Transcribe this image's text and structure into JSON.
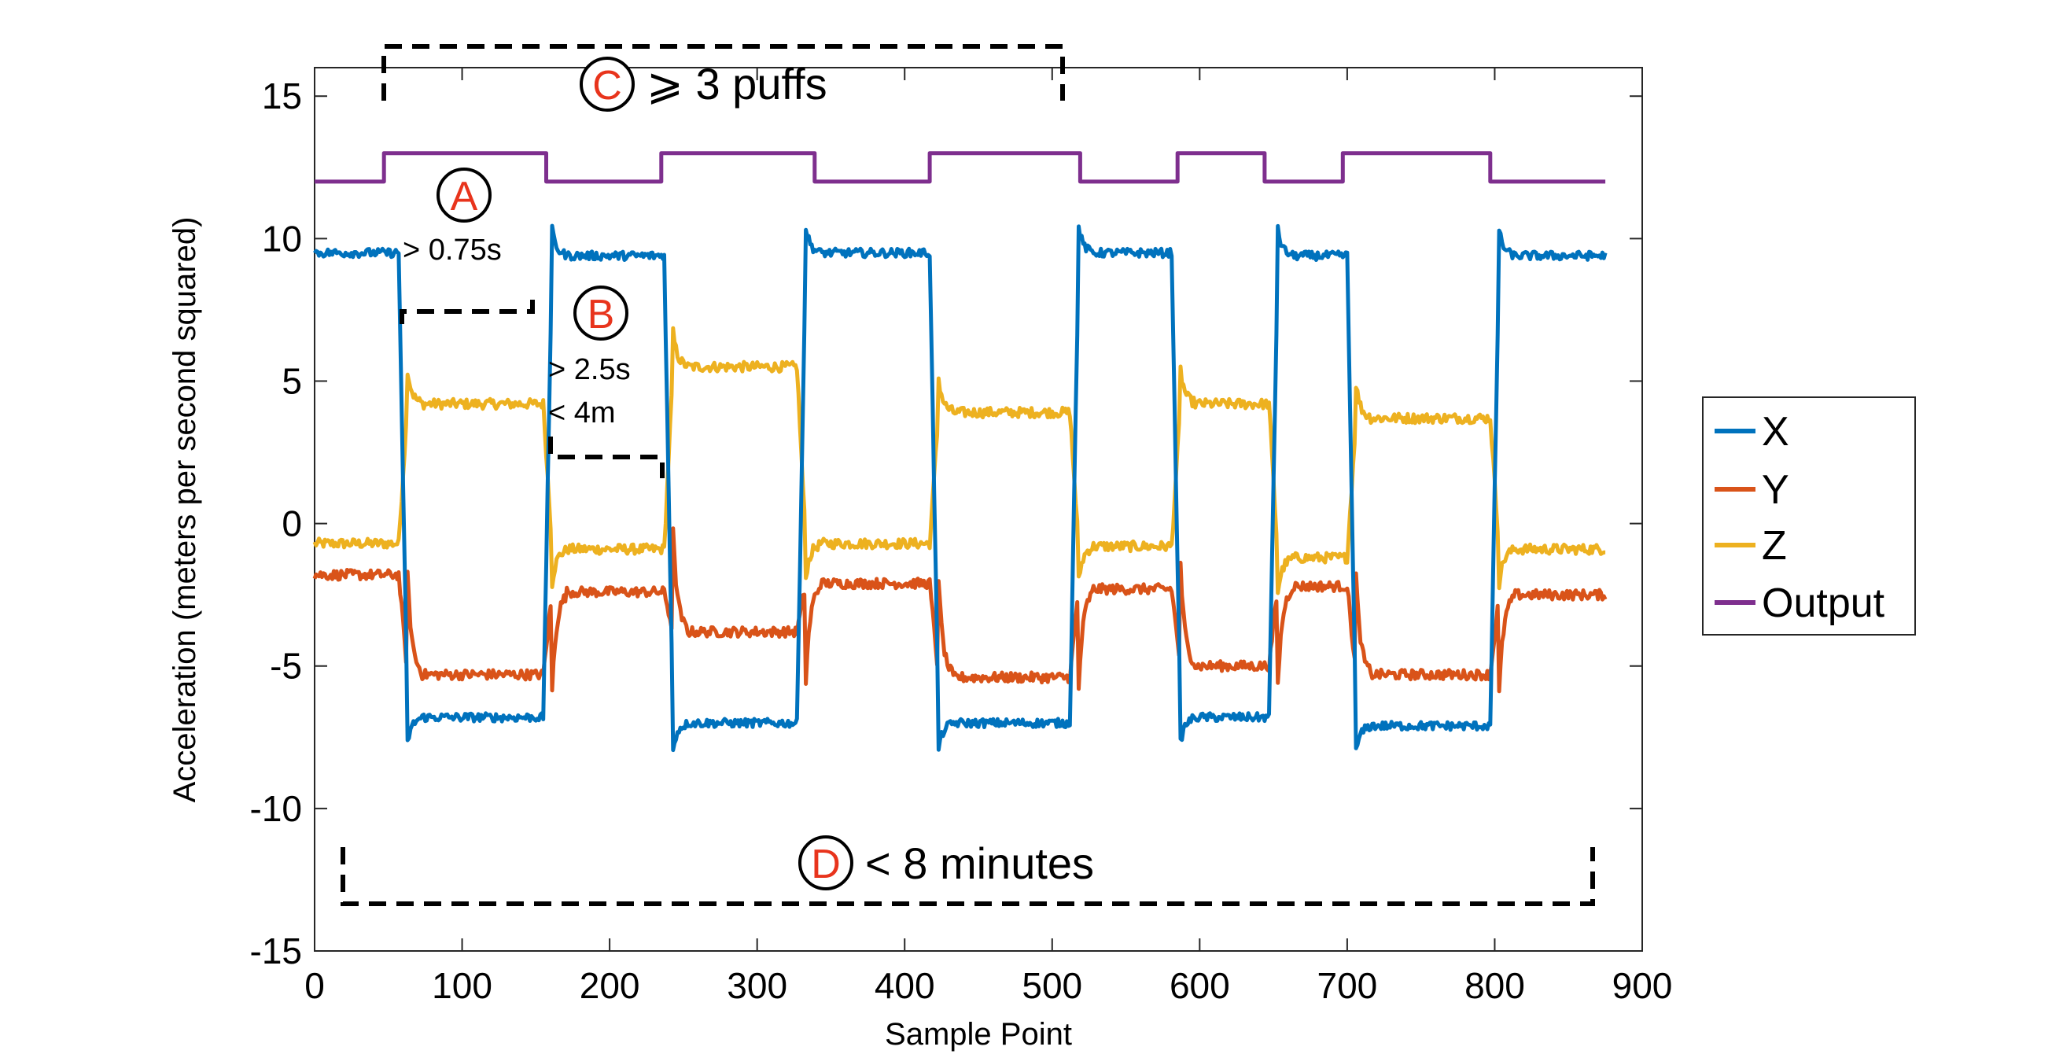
{
  "chart_data": {
    "type": "line",
    "xlabel": "Sample Point",
    "ylabel": "Acceleration (meters per second squared)",
    "xlim": [
      0,
      900
    ],
    "ylim": [
      -15,
      16
    ],
    "xticks": [
      "0",
      "100",
      "200",
      "300",
      "400",
      "500",
      "600",
      "700",
      "800",
      "900"
    ],
    "yticks": [
      "15",
      "10",
      "5",
      "0",
      "-5",
      "-10",
      "-15"
    ],
    "grid": false,
    "legend_position": "right",
    "colors": {
      "X": "#0072bd",
      "Y": "#d95319",
      "Z": "#edb120",
      "Output": "#7e2f8e",
      "annotation": "#e8341c"
    },
    "segments": {
      "x_range": [
        0,
        875
      ],
      "boundaries": [
        0,
        57,
        155,
        237,
        327,
        417,
        512,
        581,
        647,
        700,
        797,
        875
      ],
      "X": [
        9.5,
        -6.8,
        9.4,
        -7.0,
        9.5,
        -7.0,
        9.5,
        -6.8,
        9.4,
        -7.1,
        9.4
      ],
      "Y": [
        -1.8,
        -5.3,
        -2.4,
        -3.8,
        -2.1,
        -5.4,
        -2.3,
        -5.0,
        -2.2,
        -5.3,
        -2.5
      ],
      "Z": [
        -0.7,
        4.2,
        -0.9,
        5.5,
        -0.7,
        3.9,
        -0.8,
        4.2,
        -1.2,
        3.7,
        -0.9
      ]
    },
    "series": [
      {
        "name": "Output",
        "x": [
          0,
          47,
          47,
          157,
          157,
          235,
          235,
          339,
          339,
          417,
          417,
          519,
          519,
          585,
          585,
          644,
          644,
          697,
          697,
          797,
          797,
          875
        ],
        "values": [
          12,
          12,
          13,
          13,
          12,
          12,
          13,
          13,
          12,
          12,
          13,
          13,
          12,
          12,
          13,
          13,
          12,
          12,
          13,
          13,
          12,
          12
        ]
      }
    ],
    "legend": [
      "X",
      "Y",
      "Z",
      "Output"
    ],
    "annotations": {
      "A": {
        "letter": "A",
        "text": "> 0.75s"
      },
      "B": {
        "letter": "B",
        "line1": "> 2.5s",
        "line2": "< 4m"
      },
      "C": {
        "letter": "C",
        "text": "⩾ 3 puffs"
      },
      "D": {
        "letter": "D",
        "text": "< 8 minutes"
      }
    }
  }
}
